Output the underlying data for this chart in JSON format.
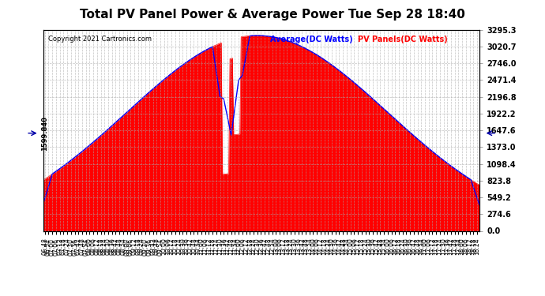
{
  "title": "Total PV Panel Power & Average Power Tue Sep 28 18:40",
  "copyright": "Copyright 2021 Cartronics.com",
  "legend_average": "Average(DC Watts)",
  "legend_pv": "PV Panels(DC Watts)",
  "left_axis_label": "1599.840",
  "y_max": 3295.3,
  "y_min": 0.0,
  "y_ticks": [
    0.0,
    274.6,
    549.2,
    823.8,
    1098.4,
    1373.0,
    1647.6,
    1922.2,
    2196.8,
    2471.4,
    2746.0,
    3020.7,
    3295.3
  ],
  "bg_color": "#ffffff",
  "fill_color": "#ff0000",
  "line_color": "#0000ff",
  "grid_color": "#aaaaaa",
  "title_color": "#000000",
  "copyright_color": "#000000",
  "left_label_color": "#000000",
  "arrow_color": "#0000aa"
}
